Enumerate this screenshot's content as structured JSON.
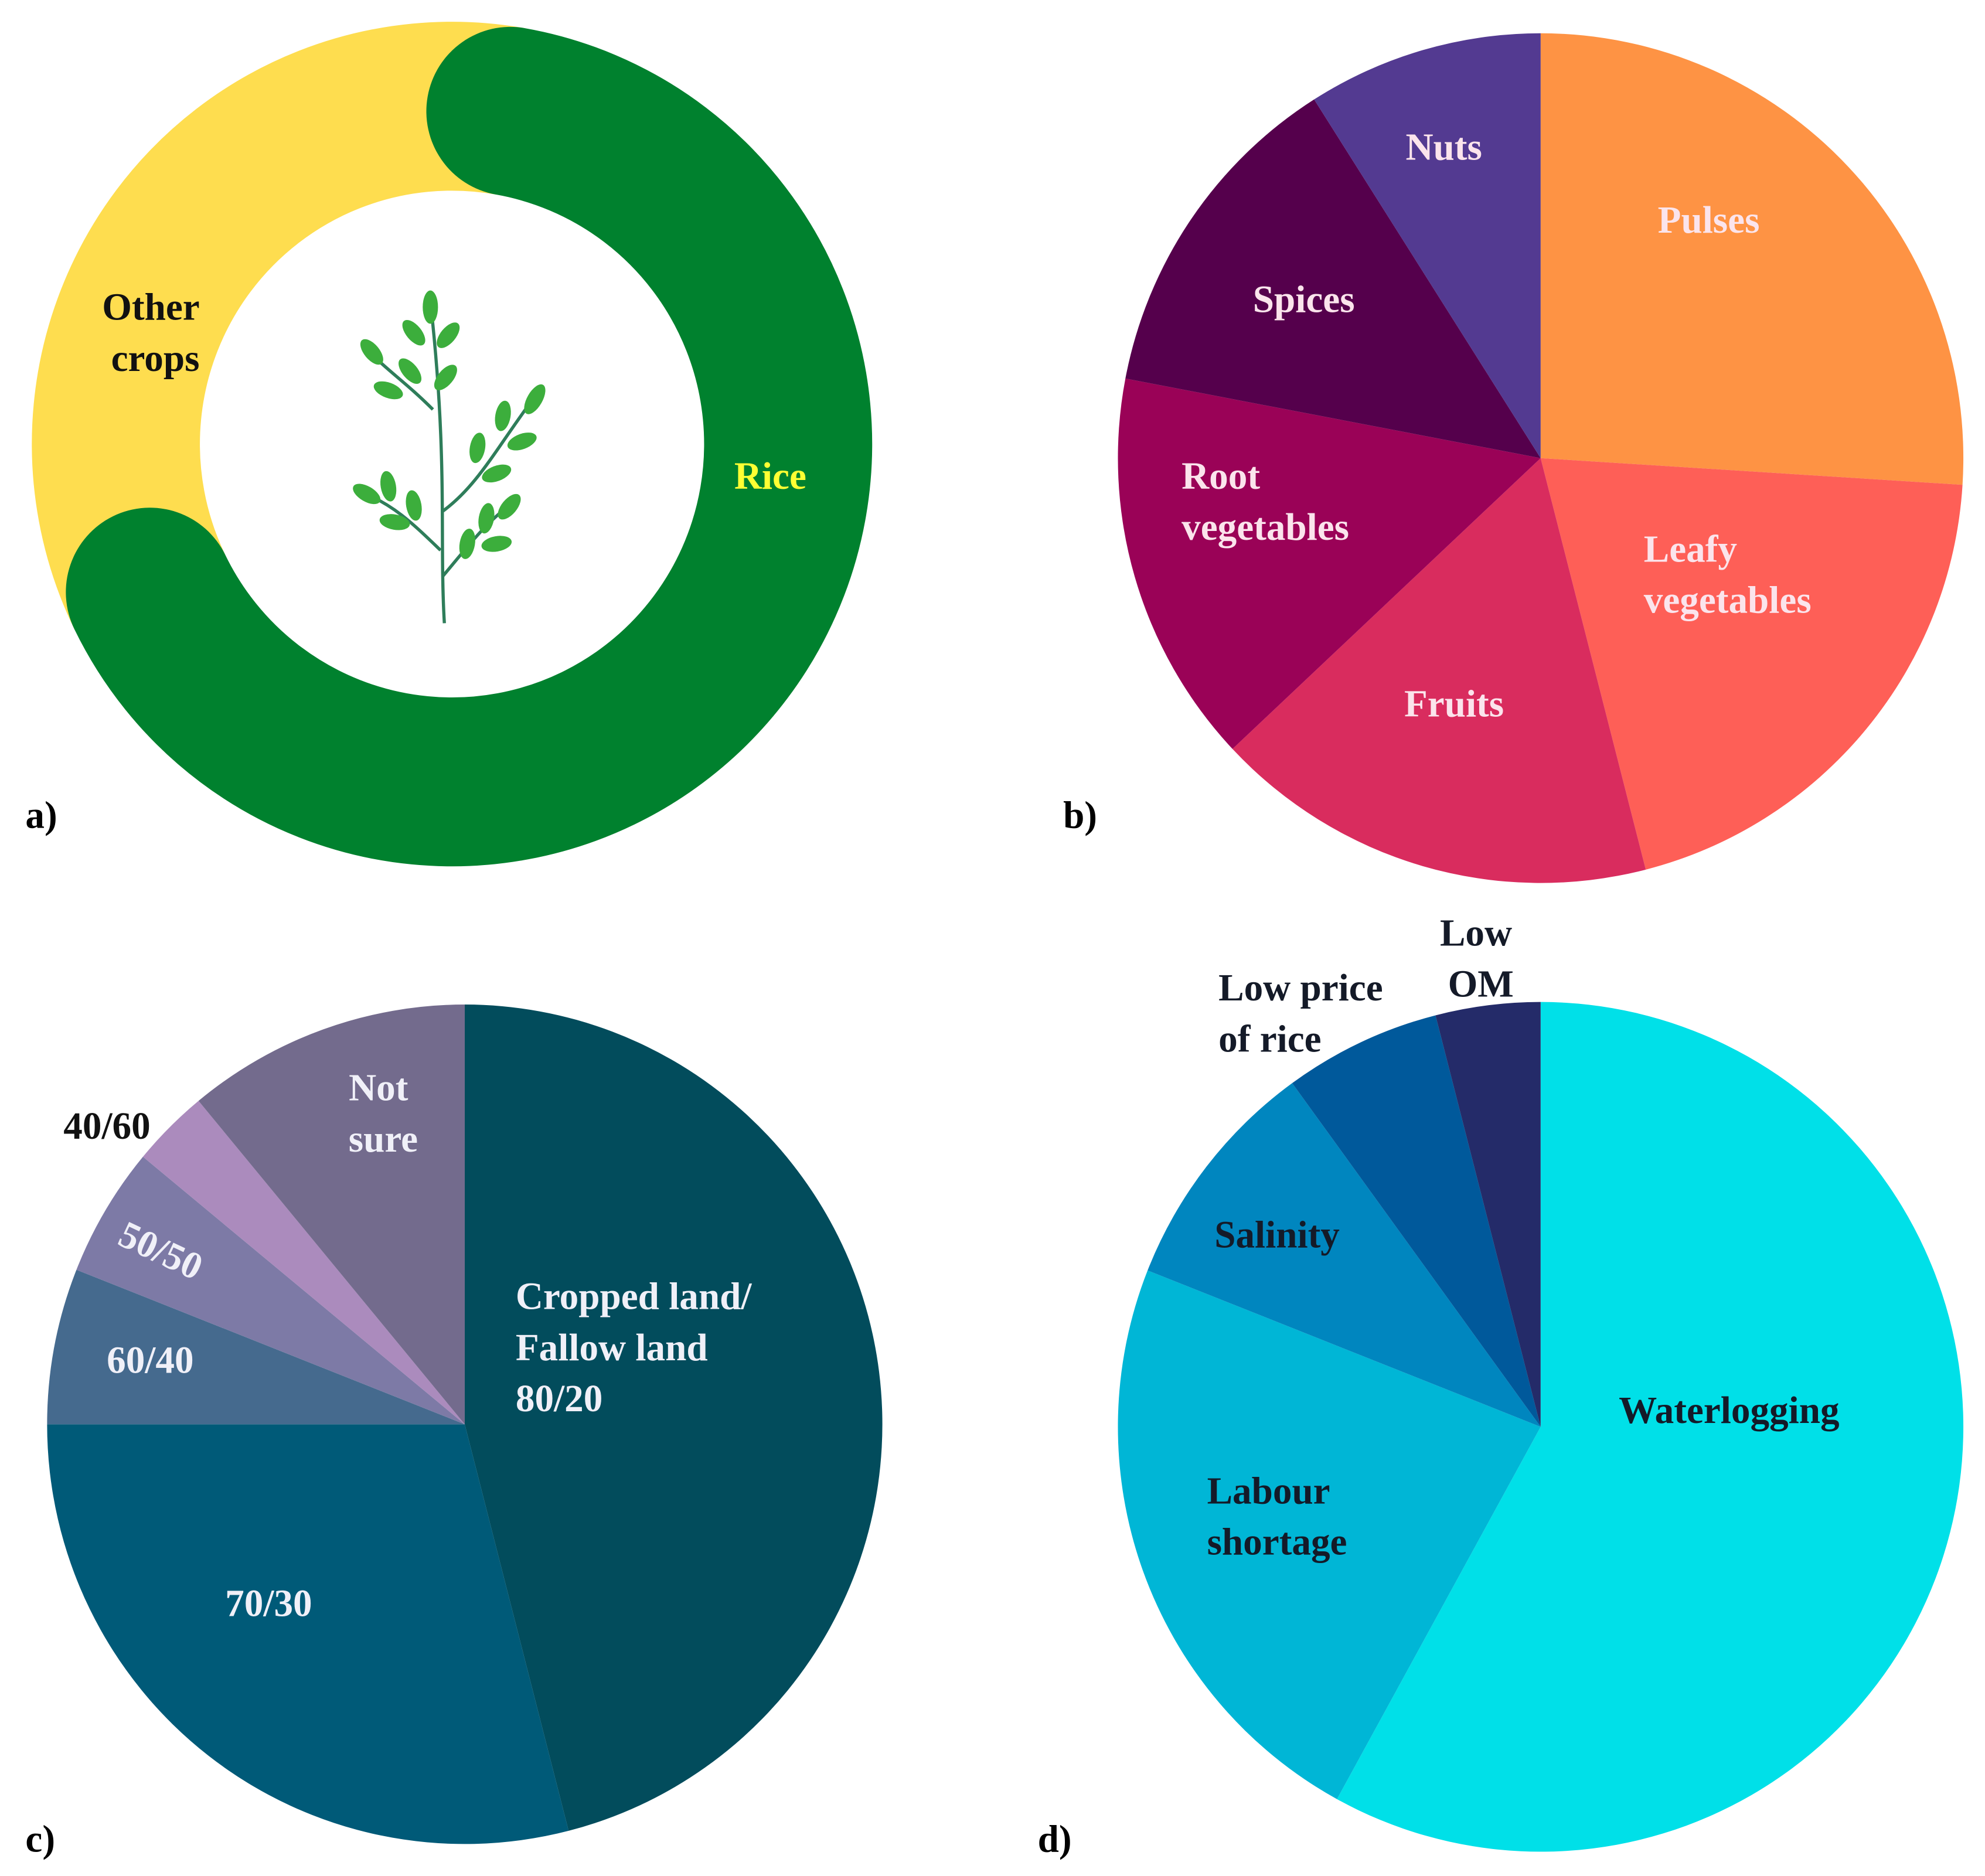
{
  "chart_data": [
    {
      "type": "donut",
      "label": "a)",
      "categories": [
        "Rice",
        "Other crops"
      ],
      "values": [
        65,
        35
      ],
      "colors": [
        "#00812e",
        "#fedd4f"
      ]
    },
    {
      "type": "pie",
      "label": "b)",
      "categories": [
        "Pulses",
        "Leafy vegetables",
        "Fruits",
        "Root vegetables",
        "Spices",
        "Nuts"
      ],
      "values": [
        26,
        20,
        17,
        15,
        13,
        9
      ],
      "colors": [
        "#fe9344",
        "#fe5f57",
        "#d92c5e",
        "#9a0257",
        "#55004c",
        "#533a91"
      ]
    },
    {
      "type": "pie",
      "label": "c)",
      "categories": [
        "Cropped land/ Fallow land 80/20",
        "70/30",
        "60/40",
        "50/50",
        "40/60",
        "Not sure"
      ],
      "values": [
        46,
        29,
        6,
        5,
        3,
        11
      ],
      "colors": [
        "#024c5c",
        "#005a78",
        "#456a8e",
        "#7d7aa6",
        "#ab8bbd",
        "#736b8d"
      ]
    },
    {
      "type": "pie",
      "label": "d)",
      "categories": [
        "Waterlogging",
        "Labour shortage",
        "Salinity",
        "Low price of rice",
        "Low OM"
      ],
      "values": [
        58,
        23,
        9,
        6,
        4
      ],
      "colors": [
        "#00e0e8",
        "#00b6d6",
        "#0086bf",
        "#00599b",
        "#242b69"
      ]
    }
  ]
}
